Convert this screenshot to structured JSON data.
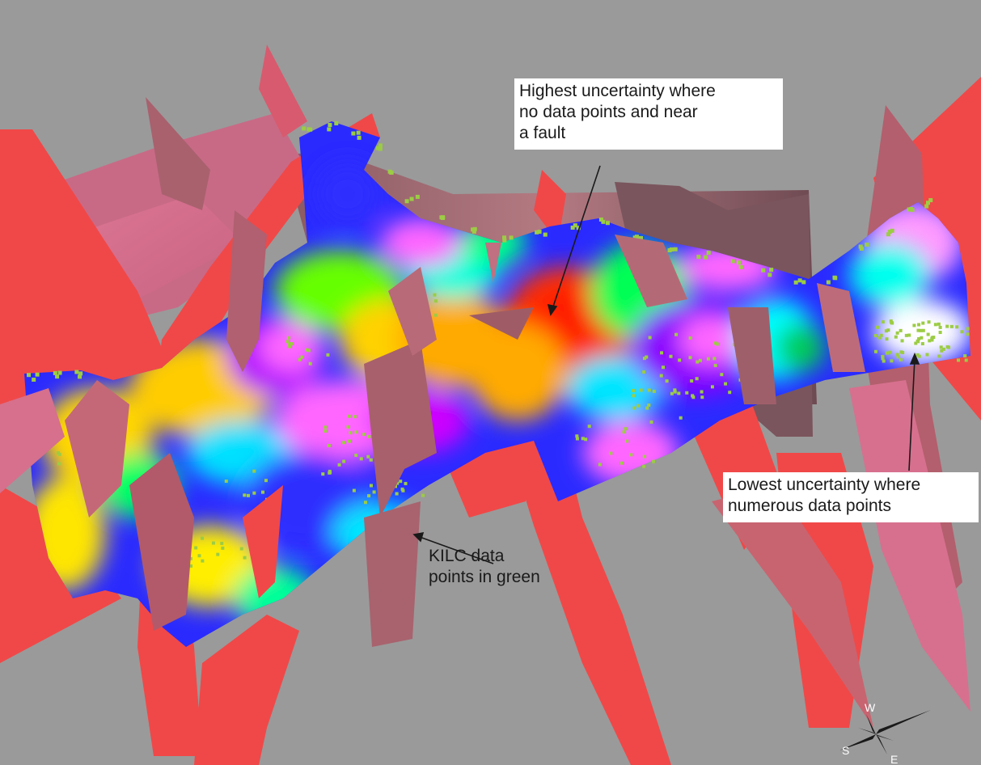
{
  "annotations": {
    "highest_uncertainty": "Highest uncertainty where\nno data points and near\na fault",
    "lowest_uncertainty": "Lowest uncertainty where\nnumerous data points",
    "data_points": "KILC data\npoints in green"
  },
  "compass": {
    "north": "W",
    "west": "S",
    "south": "E"
  },
  "colors": {
    "background": "#9a9a9a",
    "fault_red": "#f04848",
    "fault_pink": "#d9708e",
    "fault_mauve": "#a86a72",
    "data_point_green": "#9ccc44",
    "uncertainty_high": "#ff2a00",
    "uncertainty_low": "#ffffff"
  }
}
